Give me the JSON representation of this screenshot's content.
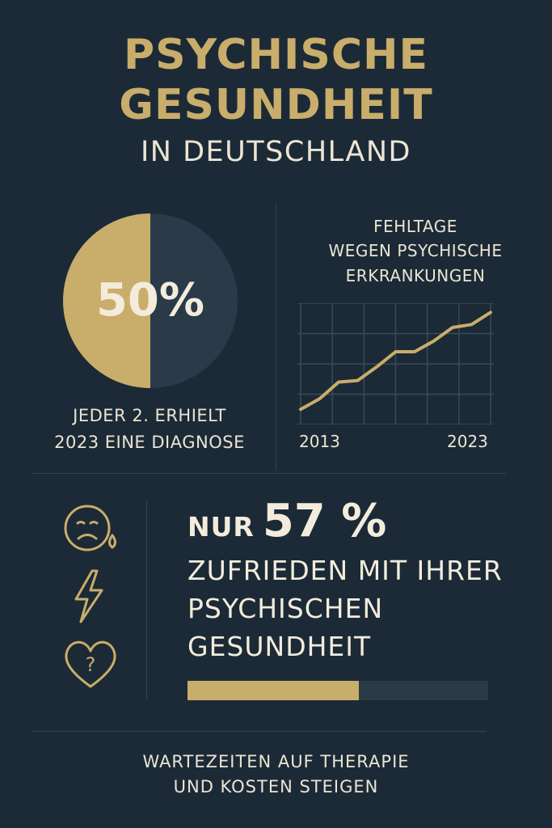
{
  "header": {
    "title_line1": "PSYCHISCHE",
    "title_line2": "GESUNDHEIT",
    "subtitle": "IN DEUTSCHLAND"
  },
  "diagnosis": {
    "value_label": "50%",
    "share": 0.5,
    "caption_line1": "JEDER 2. ERHIELT",
    "caption_line2": "2023 EINE DIAGNOSE",
    "colors": {
      "highlight": "#c9ad6a",
      "rest": "#2a3a48"
    }
  },
  "chart_data": {
    "type": "line",
    "title": "FEHLTAGE WEGEN PSYCHISCHE ERKRANKUNGEN",
    "title_lines": [
      "FEHLTAGE",
      "WEGEN PSYCHISCHE",
      "ERKRANKUNGEN"
    ],
    "x": [
      2013,
      2014,
      2015,
      2016,
      2017,
      2018,
      2019,
      2020,
      2021,
      2022,
      2023
    ],
    "y": [
      1.0,
      1.7,
      2.8,
      2.9,
      3.8,
      4.8,
      4.8,
      5.5,
      6.4,
      6.6,
      7.4
    ],
    "x_tick_labels": [
      "2013",
      "2023"
    ],
    "xlim": [
      2013,
      2023
    ],
    "ylim": [
      0,
      8
    ],
    "grid": true,
    "xlabel": "",
    "ylabel": "",
    "line_color": "#c9ad6a",
    "grid_color": "#3a4a56"
  },
  "satisfaction": {
    "prefix": "NUR",
    "value_label": "57 %",
    "share": 0.57,
    "line1": "ZUFRIEDEN MIT IHRER",
    "line2": "PSYCHISCHEN",
    "line3": "GESUNDHEIT",
    "icons": [
      "sad-tear-face-icon",
      "lightning-bolt-icon",
      "heart-question-icon"
    ],
    "bar_colors": {
      "fill": "#c9ad6a",
      "track": "#2a3b48"
    }
  },
  "footer": {
    "line1": "WARTEZEITEN AUF THERAPIE",
    "line2": "UND KOSTEN STEIGEN"
  }
}
